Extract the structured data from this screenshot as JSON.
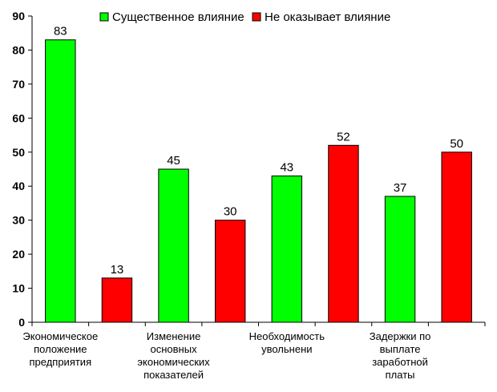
{
  "chart_data": {
    "type": "bar",
    "categories": [
      [
        "Экономическое",
        "положение",
        "предприятия"
      ],
      [
        "Изменение",
        "основных",
        "экономических",
        "показателей"
      ],
      [
        "Необходимость",
        "увольнени"
      ],
      [
        "Задержки по",
        "выплате",
        "заработной",
        "платы"
      ]
    ],
    "series": [
      {
        "name": "Существенное влияние",
        "color": "#00ff00",
        "values": [
          83,
          45,
          43,
          37
        ]
      },
      {
        "name": "Не оказывает влияние",
        "color": "#ff0000",
        "values": [
          13,
          30,
          52,
          50
        ]
      }
    ],
    "ylim": [
      0,
      90
    ],
    "yticks": [
      0,
      10,
      20,
      30,
      40,
      50,
      60,
      70,
      80,
      90
    ],
    "grid": false,
    "legend_position": "top"
  }
}
